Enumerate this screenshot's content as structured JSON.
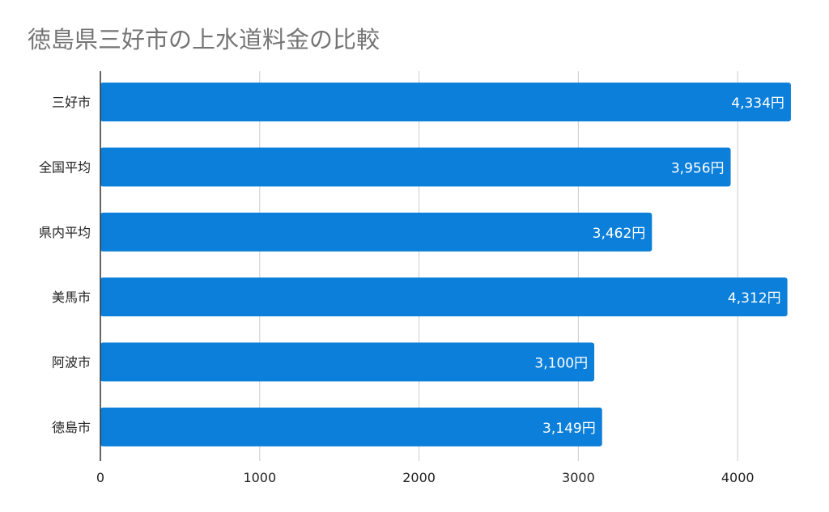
{
  "chart_data": {
    "type": "bar",
    "orientation": "horizontal",
    "title": "徳島県三好市の上水道料金の比較",
    "categories": [
      "三好市",
      "全国平均",
      "県内平均",
      "美馬市",
      "阿波市",
      "徳島市"
    ],
    "values": [
      4334,
      3956,
      3462,
      4312,
      3100,
      3149
    ],
    "data_labels": [
      "4,334円",
      "3,956円",
      "3,462円",
      "4,312円",
      "3,100円",
      "3,149円"
    ],
    "xlim": [
      0,
      4400
    ],
    "x_ticks": [
      "0",
      "1000",
      "2000",
      "3000",
      "4000"
    ],
    "x_tick_values": [
      0,
      1000,
      2000,
      3000,
      4000
    ],
    "xlabel": "",
    "ylabel": "",
    "grid": "vertical",
    "legend": "none",
    "bar_color": "#0b7fd9",
    "label_color": "#ffffff"
  }
}
